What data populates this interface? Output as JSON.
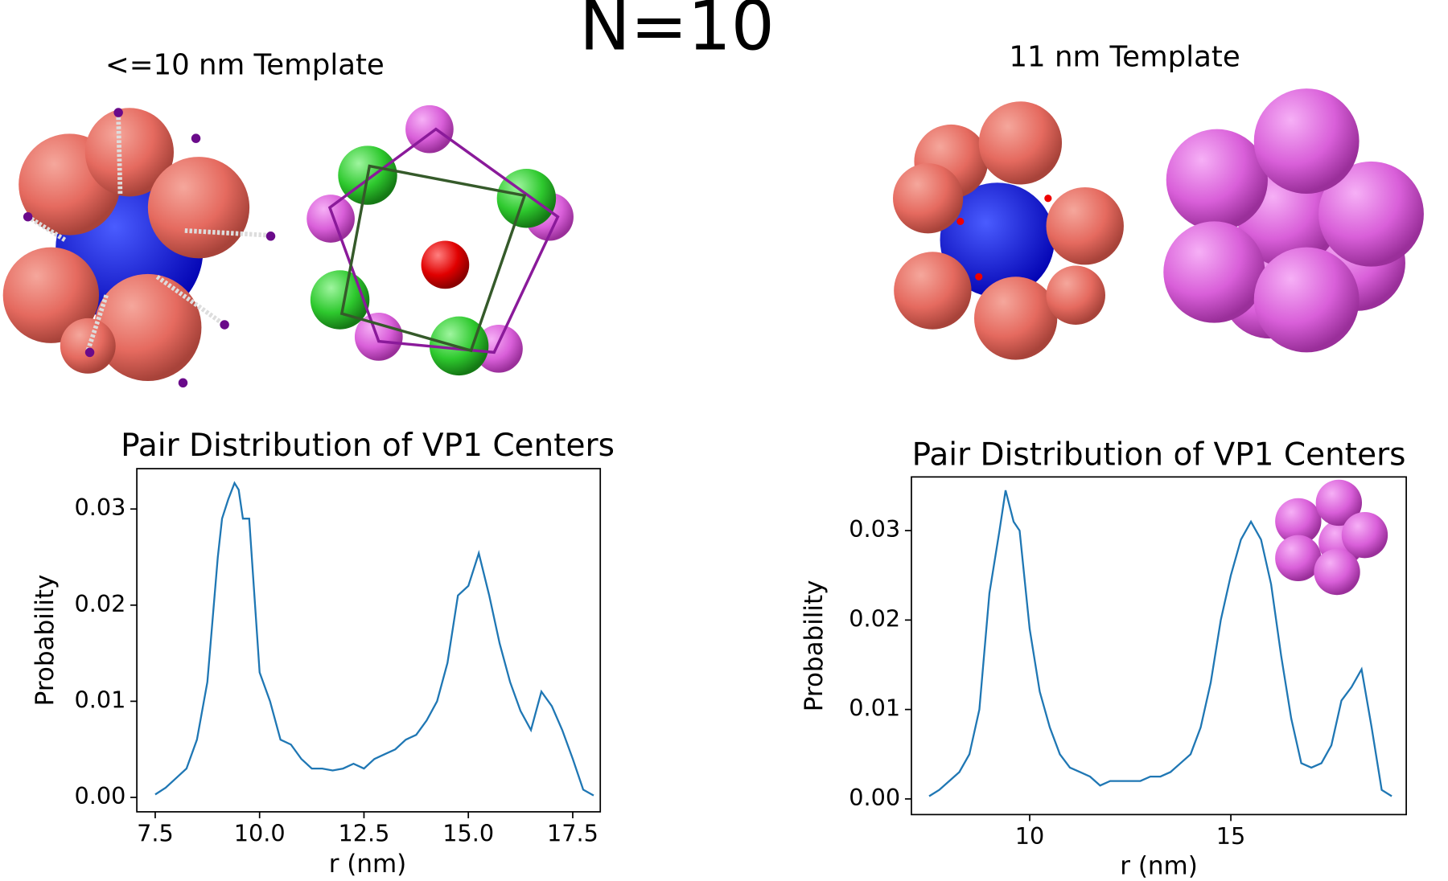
{
  "title": "N=10",
  "template_labels": [
    "<=10 nm Template",
    "11 nm Template"
  ],
  "chart_data": [
    {
      "type": "line",
      "title": "Pair Distribution of VP1 Centers",
      "x_label": "r (nm)",
      "y_label": "Probability",
      "color": "#1f77b4",
      "x": [
        7.5,
        7.75,
        8.0,
        8.25,
        8.5,
        8.75,
        9.0,
        9.1,
        9.25,
        9.4,
        9.5,
        9.6,
        9.75,
        10.0,
        10.25,
        10.5,
        10.75,
        11.0,
        11.25,
        11.5,
        11.75,
        12.0,
        12.25,
        12.5,
        12.75,
        13.0,
        13.25,
        13.5,
        13.75,
        14.0,
        14.25,
        14.5,
        14.75,
        15.0,
        15.25,
        15.5,
        15.75,
        16.0,
        16.25,
        16.5,
        16.75,
        17.0,
        17.25,
        17.5,
        17.75,
        18.0
      ],
      "values": [
        0.0003,
        0.001,
        0.002,
        0.003,
        0.006,
        0.012,
        0.025,
        0.029,
        0.031,
        0.0327,
        0.032,
        0.029,
        0.029,
        0.013,
        0.01,
        0.006,
        0.0055,
        0.004,
        0.003,
        0.003,
        0.0028,
        0.003,
        0.0035,
        0.003,
        0.004,
        0.0045,
        0.005,
        0.006,
        0.0065,
        0.008,
        0.01,
        0.014,
        0.021,
        0.022,
        0.0254,
        0.021,
        0.016,
        0.012,
        0.009,
        0.007,
        0.011,
        0.0095,
        0.007,
        0.004,
        0.0008,
        0.0002
      ],
      "xlim": [
        7.06,
        18.16
      ],
      "ylim": [
        -0.0015,
        0.0342
      ],
      "xticks": [
        7.5,
        {
          "value": 10,
          "label": "10.0"
        },
        12.5,
        {
          "value": 15,
          "label": "15.0"
        },
        17.5
      ],
      "yticks": [
        {
          "value": 0,
          "label": "0.00"
        },
        0.01,
        0.02,
        0.03
      ]
    },
    {
      "type": "line",
      "title": "Pair Distribution of VP1 Centers",
      "x_label": "r (nm)",
      "y_label": "Probability",
      "color": "#1f77b4",
      "x": [
        7.5,
        7.75,
        8.0,
        8.25,
        8.5,
        8.75,
        9.0,
        9.25,
        9.4,
        9.6,
        9.75,
        10.0,
        10.25,
        10.5,
        10.75,
        11.0,
        11.25,
        11.5,
        11.75,
        12.0,
        12.25,
        12.5,
        12.75,
        13.0,
        13.25,
        13.5,
        13.75,
        14.0,
        14.25,
        14.5,
        14.75,
        15.0,
        15.25,
        15.5,
        15.75,
        16.0,
        16.25,
        16.5,
        16.75,
        17.0,
        17.25,
        17.5,
        17.75,
        18.0,
        18.25,
        18.5,
        18.75,
        19.0
      ],
      "values": [
        0.0003,
        0.001,
        0.002,
        0.003,
        0.005,
        0.01,
        0.023,
        0.03,
        0.0345,
        0.031,
        0.03,
        0.019,
        0.012,
        0.008,
        0.005,
        0.0035,
        0.003,
        0.0025,
        0.0015,
        0.002,
        0.002,
        0.002,
        0.002,
        0.0025,
        0.0025,
        0.003,
        0.004,
        0.005,
        0.008,
        0.013,
        0.02,
        0.025,
        0.029,
        0.031,
        0.029,
        0.024,
        0.016,
        0.009,
        0.004,
        0.0035,
        0.004,
        0.006,
        0.011,
        0.0125,
        0.0145,
        0.008,
        0.001,
        0.0003
      ],
      "xlim": [
        7.06,
        19.36
      ],
      "ylim": [
        -0.00175,
        0.036
      ],
      "xticks": [
        10,
        15
      ],
      "yticks": [
        {
          "value": 0,
          "label": "0.00"
        },
        0.01,
        0.02,
        0.03
      ]
    }
  ]
}
